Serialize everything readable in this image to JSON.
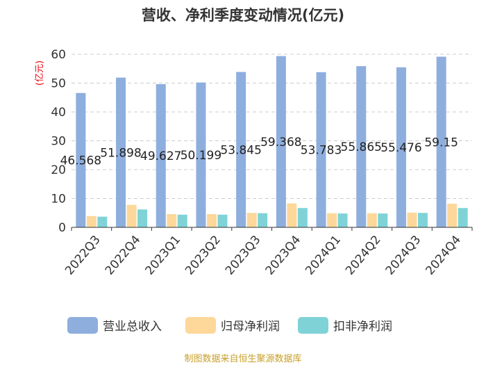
{
  "chart_data": {
    "type": "bar",
    "title": "营收、净利季度变动情况(亿元)",
    "ylabel": "(亿元)",
    "xlabel": "",
    "ylim": [
      0,
      60
    ],
    "yticks": [
      0,
      10,
      20,
      30,
      40,
      50,
      60
    ],
    "grid": true,
    "legend_position": "bottom",
    "categories": [
      "2022Q3",
      "2022Q4",
      "2023Q1",
      "2023Q2",
      "2023Q3",
      "2023Q4",
      "2024Q1",
      "2024Q2",
      "2024Q3",
      "2024Q4"
    ],
    "series": [
      {
        "name": "营业总收入",
        "color": "#8eaedd",
        "values": [
          46.568,
          51.898,
          49.627,
          50.199,
          53.845,
          59.368,
          53.783,
          55.865,
          55.476,
          59.15
        ],
        "data_labels": [
          "46.568",
          "51.898",
          "49.627",
          "50.199",
          "53.845",
          "59.368",
          "53.783",
          "55.865",
          "55.476",
          "59.15"
        ]
      },
      {
        "name": "归母净利润",
        "color": "#fdd89a",
        "values": [
          3.9,
          7.8,
          4.6,
          4.6,
          5.0,
          8.3,
          4.9,
          4.9,
          5.1,
          8.2
        ]
      },
      {
        "name": "扣非净利润",
        "color": "#7fd3d7",
        "values": [
          3.7,
          6.2,
          4.4,
          4.4,
          4.9,
          6.7,
          4.8,
          4.8,
          5.0,
          6.7
        ]
      }
    ]
  },
  "source": "制图数据来自恒生聚源数据库"
}
